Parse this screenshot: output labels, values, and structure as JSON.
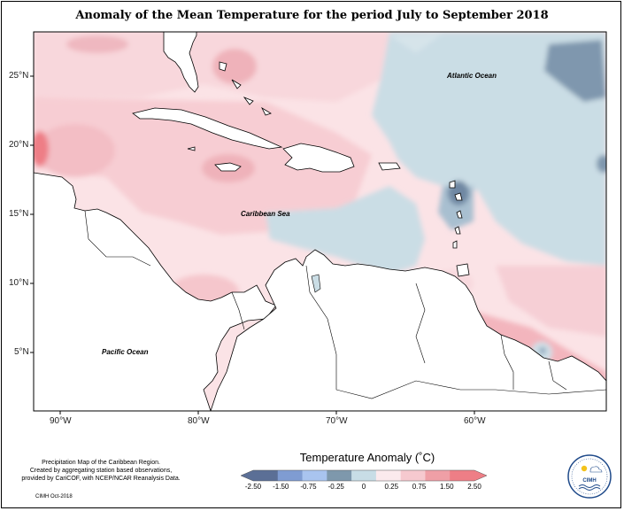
{
  "title": "Anomaly of the Mean Temperature for the period July to September 2018",
  "map": {
    "latitude_labels": [
      "25°N",
      "20°N",
      "15°N",
      "10°N",
      "5°N"
    ],
    "longitude_labels": [
      "90°W",
      "80°W",
      "70°W",
      "60°W"
    ],
    "ocean_labels": {
      "atlantic": "Atlantic Ocean",
      "caribbean": "Caribbean Sea",
      "pacific": "Pacific Ocean"
    }
  },
  "legend": {
    "title": "Temperature Anomaly (˚C)",
    "ticks": [
      "-2.50",
      "-1.50",
      "-0.75",
      "-0.25",
      "0",
      "0.25",
      "0.75",
      "1.50",
      "2.50"
    ],
    "colors": [
      "#5b6f96",
      "#7f9cd2",
      "#a9c4ef",
      "#7e98ac",
      "#c8dde6",
      "#fbeaed",
      "#f6c9cf",
      "#ef9fa6",
      "#ee7e86"
    ]
  },
  "credit": {
    "lines": [
      "Precipitation Map of the Caribbean Region.",
      "Created by aggregating station based observations,",
      "provided by CariCOF, with NCEP/NCAR Reanalysis Data."
    ],
    "date": "CIMH Oct-2018"
  },
  "logo": {
    "text": "CIMH"
  }
}
